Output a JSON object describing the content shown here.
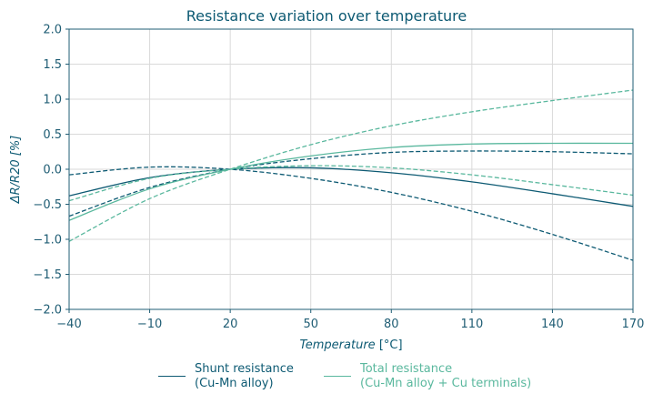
{
  "colors": {
    "dark": "#0d5a73",
    "light": "#5ab89e",
    "grid": "#d9d9d9",
    "axis": "#1f5d74"
  },
  "chart_data": {
    "type": "line",
    "title": "Resistance variation over temperature",
    "xlabel_main": "Temperature",
    "xlabel_unit": " [°C]",
    "ylabel": "ΔR/R20 [%]",
    "xlim": [
      -40,
      170
    ],
    "ylim": [
      -2.0,
      2.0
    ],
    "xticks": [
      -40,
      -10,
      20,
      50,
      80,
      110,
      140,
      170
    ],
    "xtick_labels": [
      "−40",
      "−10",
      "20",
      "50",
      "80",
      "110",
      "140",
      "170"
    ],
    "yticks": [
      -2.0,
      -1.5,
      -1.0,
      -0.5,
      0.0,
      0.5,
      1.0,
      1.5,
      2.0
    ],
    "ytick_labels": [
      "−2.0",
      "−1.5",
      "−1.0",
      "−0.5",
      "0.0",
      "0.5",
      "1.0",
      "1.5",
      "2.0"
    ],
    "grid": true,
    "legend_position": "bottom-center",
    "x": [
      -40,
      -10,
      20,
      50,
      80,
      110,
      140,
      170
    ],
    "series": [
      {
        "group": "shunt",
        "style": "solid",
        "values": [
          -0.38,
          -0.12,
          0.0,
          0.02,
          -0.05,
          -0.18,
          -0.35,
          -0.53
        ]
      },
      {
        "group": "shunt",
        "style": "dashed",
        "values": [
          -0.08,
          0.03,
          0.0,
          -0.13,
          -0.33,
          -0.6,
          -0.93,
          -1.3
        ]
      },
      {
        "group": "shunt",
        "style": "dashed",
        "values": [
          -0.67,
          -0.26,
          0.0,
          0.15,
          0.24,
          0.26,
          0.25,
          0.22
        ]
      },
      {
        "group": "total",
        "style": "solid",
        "values": [
          -0.73,
          -0.28,
          0.0,
          0.19,
          0.31,
          0.36,
          0.37,
          0.37
        ]
      },
      {
        "group": "total",
        "style": "dashed",
        "values": [
          -1.03,
          -0.42,
          0.0,
          0.35,
          0.62,
          0.82,
          0.98,
          1.13
        ]
      },
      {
        "group": "total",
        "style": "dashed",
        "values": [
          -0.45,
          -0.13,
          0.0,
          0.05,
          0.02,
          -0.08,
          -0.22,
          -0.37
        ]
      }
    ]
  },
  "legend": {
    "shunt": "Shunt resistance\n(Cu-Mn alloy)",
    "total": "Total resistance\n(Cu-Mn alloy + Cu terminals)"
  }
}
